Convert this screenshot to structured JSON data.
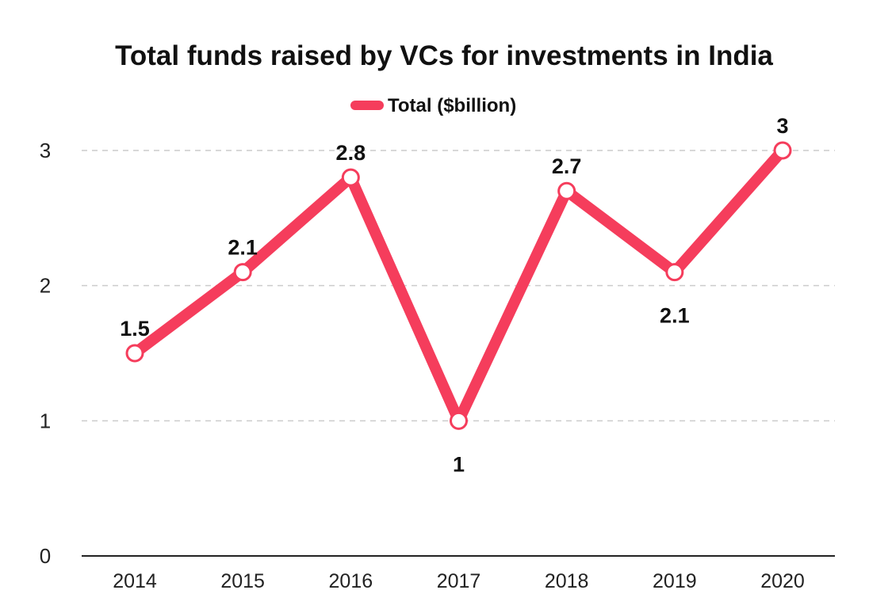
{
  "chart_data": {
    "type": "line",
    "title": "Total funds raised by VCs for investments in India",
    "categories": [
      "2014",
      "2015",
      "2016",
      "2017",
      "2018",
      "2019",
      "2020"
    ],
    "series": [
      {
        "name": "Total ($billion)",
        "values": [
          1.5,
          2.1,
          2.8,
          1,
          2.7,
          2.1,
          3
        ],
        "labels": [
          "1.5",
          "2.1",
          "2.8",
          "1",
          "2.7",
          "2.1",
          "3"
        ],
        "color": "#f53d5c"
      }
    ],
    "ylim": [
      0,
      3
    ],
    "yticks": [
      "0",
      "1",
      "2",
      "3"
    ],
    "grid": true,
    "legend_position": "top-center",
    "xlabel": "",
    "ylabel": ""
  }
}
